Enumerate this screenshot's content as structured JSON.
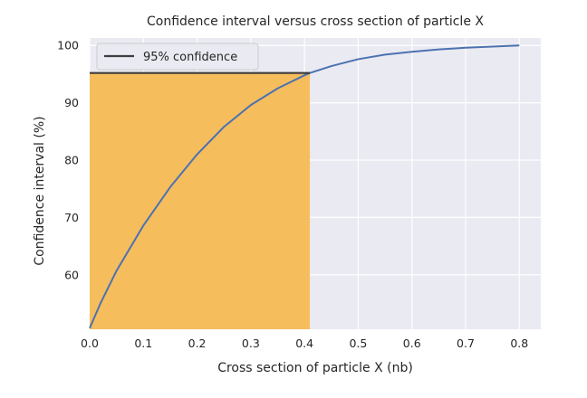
{
  "chart_data": {
    "type": "line",
    "title": "Confidence interval versus cross section of particle X",
    "xlabel": "Cross section of particle X (nb)",
    "ylabel": "Confidence interval (%)",
    "xlim": [
      0.0,
      0.84
    ],
    "ylim": [
      50.5,
      101.3
    ],
    "xticks": [
      "0.0",
      "0.1",
      "0.2",
      "0.3",
      "0.4",
      "0.5",
      "0.6",
      "0.7",
      "0.8"
    ],
    "yticks": [
      "60",
      "70",
      "80",
      "90",
      "100"
    ],
    "grid": true,
    "legend": {
      "position": "top-left",
      "entries": [
        "95% confidence"
      ]
    },
    "series": [
      {
        "color": "#4c72b0",
        "x": [
          0.0,
          0.02,
          0.05,
          0.1,
          0.15,
          0.2,
          0.25,
          0.3,
          0.35,
          0.4,
          0.41,
          0.45,
          0.5,
          0.55,
          0.6,
          0.65,
          0.7,
          0.75,
          0.8
        ],
        "y": [
          50.7,
          55.0,
          60.7,
          68.6,
          75.3,
          81.0,
          85.8,
          89.6,
          92.5,
          94.8,
          95.2,
          96.4,
          97.6,
          98.4,
          98.9,
          99.3,
          99.6,
          99.8,
          100.0
        ]
      }
    ],
    "threshold": {
      "label": "95% confidence",
      "y": 95.2,
      "x_end": 0.41,
      "color": "#3d3d3d"
    },
    "shaded_region": {
      "x_start": 0.0,
      "x_end": 0.41,
      "color": "#f6bd5d"
    }
  }
}
